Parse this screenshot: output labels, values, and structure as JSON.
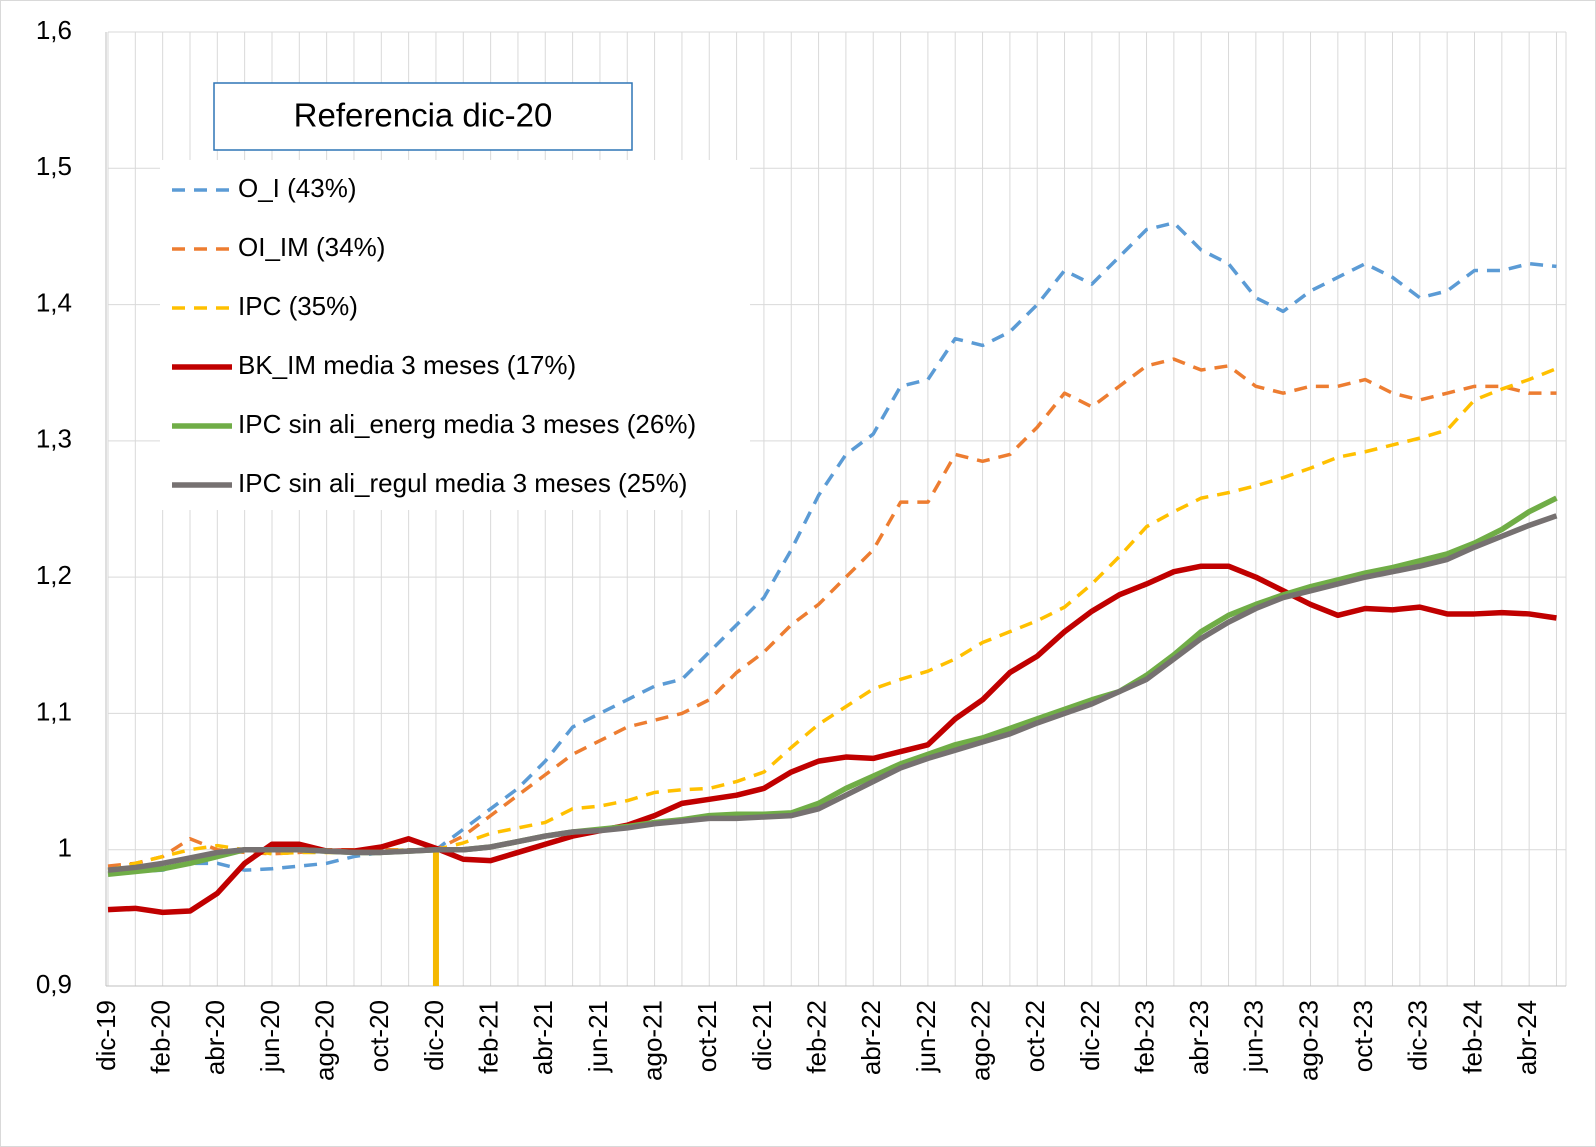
{
  "chart_data": {
    "type": "line",
    "annotation": "Referencia dic-20",
    "reference_line": {
      "category": "dic-20",
      "value": 1,
      "color": "#f5b800"
    },
    "categories": [
      "dic-19",
      null,
      "feb-20",
      null,
      "abr-20",
      null,
      "jun-20",
      null,
      "ago-20",
      null,
      "oct-20",
      null,
      "dic-20",
      null,
      "feb-21",
      null,
      "abr-21",
      null,
      "jun-21",
      null,
      "ago-21",
      null,
      "oct-21",
      null,
      "dic-21",
      null,
      "feb-22",
      null,
      "abr-22",
      null,
      "jun-22",
      null,
      "ago-22",
      null,
      "oct-22",
      null,
      "dic-22",
      null,
      "feb-23",
      null,
      "abr-23",
      null,
      "jun-23",
      null,
      "ago-23",
      null,
      "oct-23",
      null,
      "dic-23",
      null,
      "feb-24",
      null,
      "abr-24",
      null
    ],
    "ylim": [
      0.9,
      1.6
    ],
    "yticks": [
      {
        "value": 0.9,
        "label": "0,9"
      },
      1,
      {
        "value": 1.1,
        "label": "1,1"
      },
      {
        "value": 1.2,
        "label": "1,2"
      },
      {
        "value": 1.3,
        "label": "1,3"
      },
      {
        "value": 1.4,
        "label": "1,4"
      },
      {
        "value": 1.5,
        "label": "1,5"
      },
      {
        "value": 1.6,
        "label": "1,6"
      }
    ],
    "grid": true,
    "series": [
      {
        "name": "O_I (43%)",
        "color": "#5b9bd5",
        "dashed": true,
        "values": [
          0.985,
          0.984,
          0.985,
          0.99,
          0.99,
          0.985,
          0.986,
          0.988,
          0.99,
          0.995,
          0.998,
          1.0,
          1.0,
          1.015,
          1.03,
          1.045,
          1.065,
          1.09,
          1.1,
          1.11,
          1.12,
          1.125,
          1.145,
          1.165,
          1.185,
          1.22,
          1.26,
          1.29,
          1.305,
          1.34,
          1.345,
          1.375,
          1.37,
          1.38,
          1.4,
          1.425,
          1.415,
          1.435,
          1.455,
          1.46,
          1.44,
          1.43,
          1.405,
          1.395,
          1.41,
          1.42,
          1.43,
          1.42,
          1.405,
          1.41,
          1.425,
          1.425,
          1.43,
          1.428
        ]
      },
      {
        "name": "OI_IM (34%)",
        "color": "#ed7d31",
        "dashed": true,
        "values": [
          0.988,
          0.99,
          0.995,
          1.008,
          1.0,
          0.998,
          0.997,
          0.998,
          1.0,
          1.0,
          1.0,
          1.0,
          1.0,
          1.01,
          1.025,
          1.04,
          1.055,
          1.07,
          1.08,
          1.09,
          1.095,
          1.1,
          1.11,
          1.13,
          1.145,
          1.165,
          1.18,
          1.2,
          1.22,
          1.255,
          1.255,
          1.29,
          1.285,
          1.29,
          1.31,
          1.335,
          1.325,
          1.34,
          1.355,
          1.36,
          1.352,
          1.355,
          1.34,
          1.335,
          1.34,
          1.34,
          1.345,
          1.335,
          1.33,
          1.335,
          1.34,
          1.34,
          1.335,
          1.335
        ]
      },
      {
        "name": "IPC (35%)",
        "color": "#ffc000",
        "dashed": true,
        "values": [
          0.985,
          0.99,
          0.995,
          1.0,
          1.003,
          1.0,
          0.997,
          0.998,
          0.998,
          0.998,
          0.999,
          1.0,
          1.0,
          1.005,
          1.012,
          1.016,
          1.02,
          1.03,
          1.032,
          1.036,
          1.042,
          1.044,
          1.045,
          1.05,
          1.057,
          1.075,
          1.092,
          1.105,
          1.118,
          1.125,
          1.131,
          1.14,
          1.152,
          1.16,
          1.168,
          1.178,
          1.195,
          1.215,
          1.237,
          1.248,
          1.258,
          1.262,
          1.267,
          1.273,
          1.28,
          1.288,
          1.292,
          1.297,
          1.302,
          1.308,
          1.33,
          1.338,
          1.345,
          1.353
        ]
      },
      {
        "name": "BK_IM media 3 meses (17%)",
        "color": "#c00000",
        "dashed": false,
        "values": [
          0.956,
          0.957,
          0.954,
          0.955,
          0.968,
          0.99,
          1.004,
          1.004,
          0.999,
          0.999,
          1.002,
          1.008,
          1.001,
          0.993,
          0.992,
          0.998,
          1.004,
          1.01,
          1.014,
          1.018,
          1.025,
          1.034,
          1.037,
          1.04,
          1.045,
          1.057,
          1.065,
          1.068,
          1.067,
          1.072,
          1.077,
          1.096,
          1.11,
          1.13,
          1.142,
          1.16,
          1.175,
          1.187,
          1.195,
          1.204,
          1.208,
          1.208,
          1.2,
          1.19,
          1.18,
          1.172,
          1.177,
          1.176,
          1.178,
          1.173,
          1.173,
          1.174,
          1.173,
          1.17
        ]
      },
      {
        "name": "IPC sin ali_energ media 3 meses (26%)",
        "color": "#70ad47",
        "dashed": false,
        "values": [
          0.982,
          0.984,
          0.986,
          0.99,
          0.995,
          1.0,
          1.0,
          1.0,
          0.999,
          0.998,
          0.998,
          0.999,
          1.0,
          1.0,
          1.002,
          1.006,
          1.01,
          1.013,
          1.015,
          1.017,
          1.02,
          1.022,
          1.025,
          1.026,
          1.026,
          1.027,
          1.034,
          1.045,
          1.054,
          1.063,
          1.07,
          1.077,
          1.082,
          1.089,
          1.096,
          1.103,
          1.11,
          1.116,
          1.128,
          1.143,
          1.16,
          1.172,
          1.18,
          1.187,
          1.193,
          1.198,
          1.203,
          1.207,
          1.212,
          1.217,
          1.225,
          1.235,
          1.248,
          1.258
        ]
      },
      {
        "name": "IPC sin ali_regul media 3 meses (25%)",
        "color": "#767171",
        "dashed": false,
        "values": [
          0.985,
          0.987,
          0.99,
          0.994,
          0.998,
          1.0,
          1.0,
          1.0,
          0.999,
          0.998,
          0.998,
          0.999,
          1.0,
          1.0,
          1.002,
          1.006,
          1.01,
          1.013,
          1.014,
          1.016,
          1.019,
          1.021,
          1.023,
          1.023,
          1.024,
          1.025,
          1.03,
          1.04,
          1.05,
          1.06,
          1.067,
          1.073,
          1.079,
          1.085,
          1.093,
          1.1,
          1.107,
          1.116,
          1.125,
          1.14,
          1.155,
          1.167,
          1.177,
          1.185,
          1.19,
          1.195,
          1.2,
          1.204,
          1.208,
          1.213,
          1.222,
          1.23,
          1.238,
          1.245
        ]
      }
    ]
  }
}
